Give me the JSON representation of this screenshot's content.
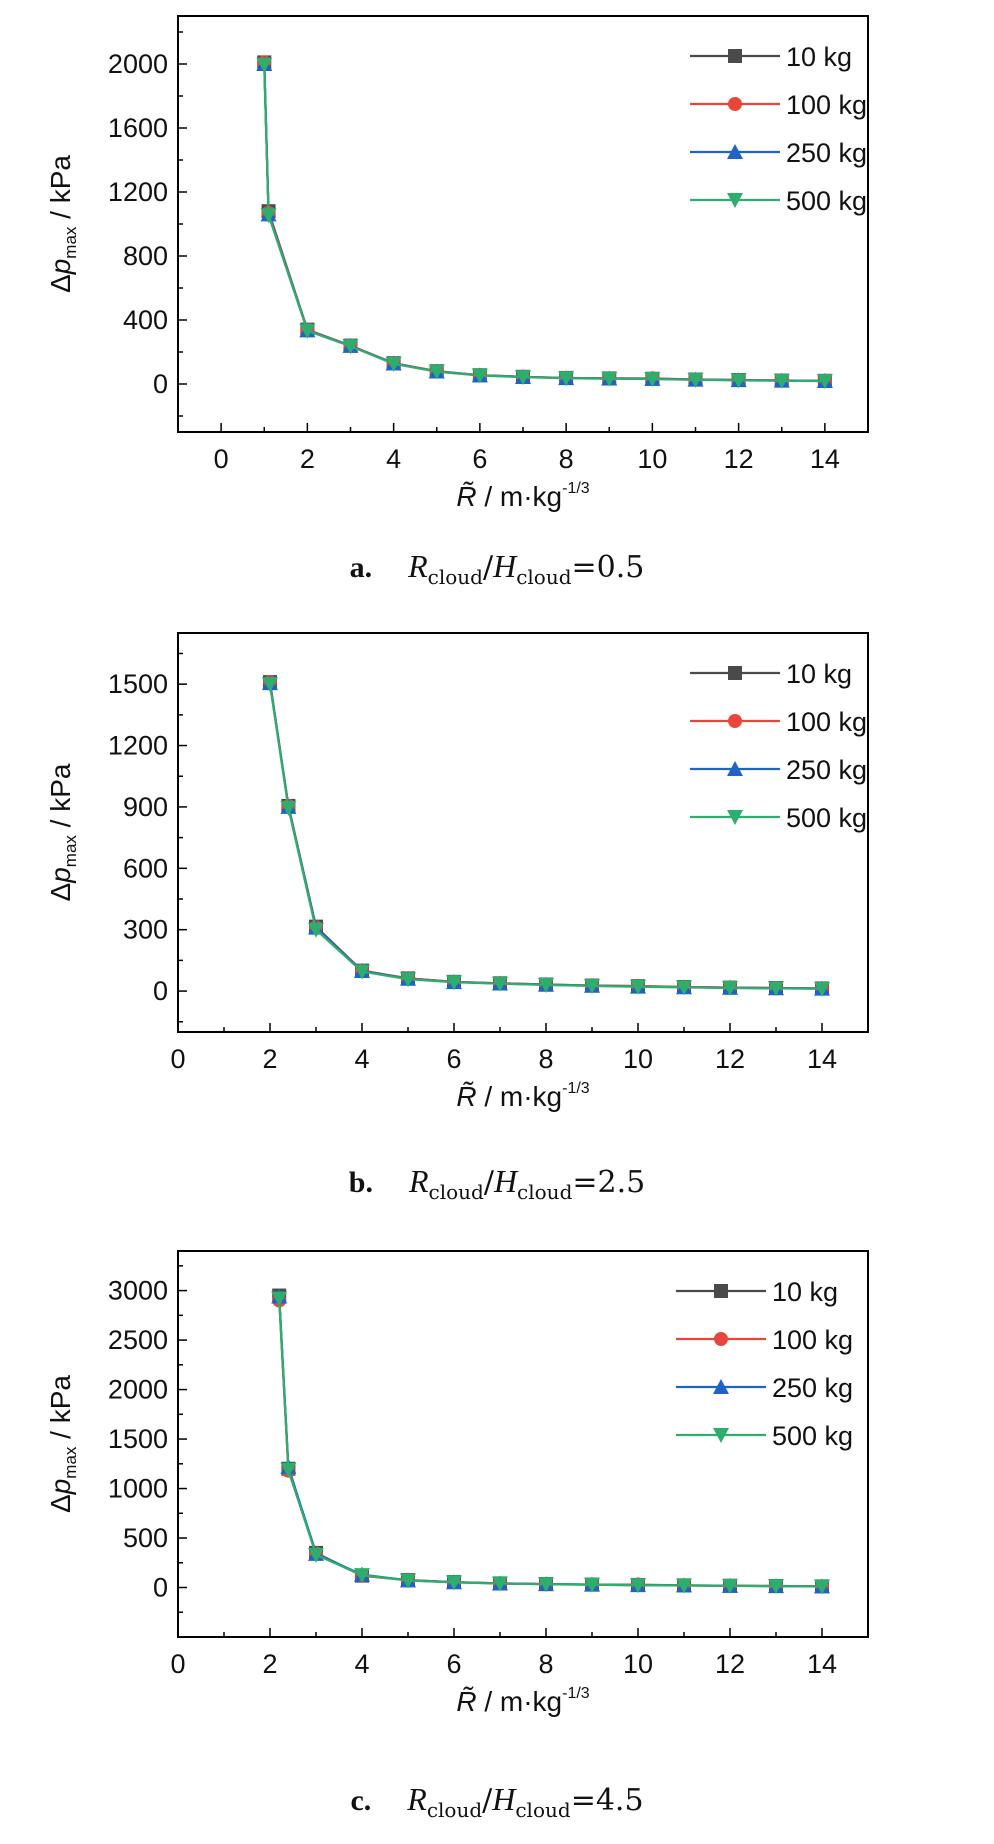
{
  "series_names": [
    "10 kg",
    "100 kg",
    "250 kg",
    "500 kg"
  ],
  "series_colors": [
    "#4a4a4a",
    "#e8463a",
    "#1f62c8",
    "#2eae6c"
  ],
  "series_markers": [
    "square",
    "circle",
    "triangle-up",
    "triangle-down"
  ],
  "chart_data": [
    {
      "type": "line",
      "xlabel": "R̃ / m·kg-1/3",
      "ylabel": "Δpmax / kPa",
      "xlim": [
        -1,
        15
      ],
      "ylim": [
        -300,
        2300
      ],
      "xticks": [
        0,
        2,
        4,
        6,
        8,
        10,
        12,
        14
      ],
      "yticks": [
        0,
        400,
        800,
        1200,
        1600,
        2000
      ],
      "x": [
        1,
        1.1,
        2,
        3,
        4,
        5,
        6,
        7,
        8,
        9,
        10,
        11,
        12,
        13,
        14
      ],
      "series": [
        {
          "name": "10 kg",
          "values": [
            2010,
            1080,
            340,
            240,
            130,
            80,
            55,
            45,
            38,
            35,
            33,
            28,
            25,
            22,
            20
          ]
        },
        {
          "name": "100 kg",
          "values": [
            2010,
            1070,
            340,
            240,
            130,
            80,
            55,
            45,
            38,
            35,
            35,
            28,
            25,
            22,
            20
          ]
        },
        {
          "name": "250 kg",
          "values": [
            2000,
            1060,
            335,
            238,
            128,
            78,
            54,
            44,
            37,
            34,
            32,
            27,
            24,
            21,
            19
          ]
        },
        {
          "name": "500 kg",
          "values": [
            1995,
            1055,
            333,
            236,
            126,
            77,
            53,
            43,
            36,
            33,
            31,
            26,
            23,
            20,
            18
          ]
        }
      ],
      "caption": {
        "label": "a.",
        "ratio": "0.5"
      }
    },
    {
      "type": "line",
      "xlabel": "R̃ / m·kg-1/3",
      "ylabel": "Δpmax / kPa",
      "xlim": [
        0,
        15
      ],
      "ylim": [
        -200,
        1750
      ],
      "xticks": [
        0,
        2,
        4,
        6,
        8,
        10,
        12,
        14
      ],
      "yticks": [
        0,
        300,
        600,
        900,
        1200,
        1500
      ],
      "x": [
        2,
        2.4,
        3,
        4,
        5,
        6,
        7,
        8,
        9,
        10,
        11,
        12,
        13,
        14
      ],
      "series": [
        {
          "name": "10 kg",
          "values": [
            1510,
            905,
            315,
            100,
            62,
            45,
            38,
            32,
            27,
            24,
            20,
            17,
            15,
            13
          ]
        },
        {
          "name": "100 kg",
          "values": [
            1510,
            905,
            312,
            100,
            62,
            45,
            38,
            32,
            27,
            25,
            20,
            17,
            15,
            13
          ]
        },
        {
          "name": "250 kg",
          "values": [
            1505,
            900,
            310,
            98,
            60,
            44,
            37,
            31,
            26,
            22,
            19,
            16,
            14,
            12
          ]
        },
        {
          "name": "500 kg",
          "values": [
            1500,
            895,
            300,
            95,
            58,
            43,
            36,
            30,
            25,
            21,
            18,
            15,
            13,
            11
          ]
        }
      ],
      "caption": {
        "label": "b.",
        "ratio": "2.5"
      }
    },
    {
      "type": "line",
      "xlabel": "R̃ / m·kg-1/3",
      "ylabel": "Δpmax / kPa",
      "xlim": [
        0,
        15
      ],
      "ylim": [
        -500,
        3400
      ],
      "xticks": [
        0,
        2,
        4,
        6,
        8,
        10,
        12,
        14
      ],
      "yticks": [
        0,
        500,
        1000,
        1500,
        2000,
        2500,
        3000
      ],
      "x": [
        2.2,
        2.4,
        3,
        4,
        5,
        6,
        7,
        8,
        9,
        10,
        11,
        12,
        13,
        14
      ],
      "series": [
        {
          "name": "10 kg",
          "values": [
            2950,
            1200,
            350,
            120,
            75,
            55,
            42,
            35,
            30,
            26,
            22,
            18,
            15,
            12
          ]
        },
        {
          "name": "100 kg",
          "values": [
            2900,
            1180,
            345,
            118,
            74,
            54,
            42,
            35,
            30,
            30,
            22,
            18,
            15,
            12
          ]
        },
        {
          "name": "250 kg",
          "values": [
            2940,
            1220,
            340,
            130,
            72,
            53,
            41,
            34,
            29,
            24,
            21,
            17,
            14,
            11
          ]
        },
        {
          "name": "500 kg",
          "values": [
            2920,
            1190,
            330,
            125,
            70,
            52,
            40,
            33,
            28,
            23,
            20,
            16,
            13,
            10
          ]
        }
      ],
      "caption": {
        "label": "c.",
        "ratio": "4.5"
      }
    }
  ],
  "caption_parts": {
    "r": "R",
    "h": "H",
    "sub": "cloud",
    "eq": "="
  }
}
